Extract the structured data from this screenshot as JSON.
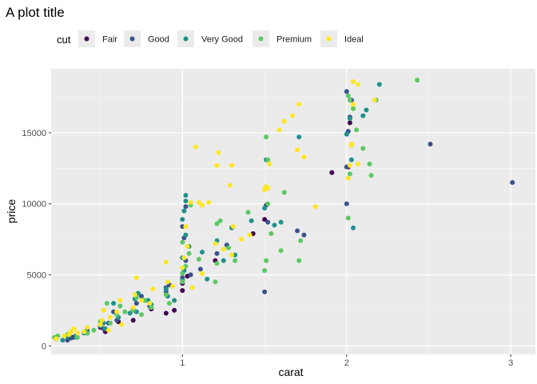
{
  "chart_data": {
    "type": "scatter",
    "title": "A plot title",
    "xlabel": "carat",
    "ylabel": "price",
    "xlim": [
      0.2,
      3.15
    ],
    "ylim": [
      -600,
      19500
    ],
    "x_ticks": [
      1,
      2,
      3
    ],
    "x_minor_ticks": [
      0.5,
      1.5,
      2.5
    ],
    "y_ticks": [
      0,
      5000,
      10000,
      15000
    ],
    "y_minor_ticks": [
      2500,
      7500,
      12500,
      17500
    ],
    "grid": true,
    "legend": {
      "title": "cut",
      "placement": "top",
      "entries": [
        {
          "name": "Fair",
          "color": "#440154"
        },
        {
          "name": "Good",
          "color": "#3B528B"
        },
        {
          "name": "Very Good",
          "color": "#21908C"
        },
        {
          "name": "Premium",
          "color": "#5DC863"
        },
        {
          "name": "Ideal",
          "color": "#FDE725"
        }
      ]
    },
    "series": [
      {
        "name": "Fair",
        "color": "#440154",
        "points": [
          [
            0.7,
            1800
          ],
          [
            0.9,
            2300
          ],
          [
            1.0,
            3900
          ],
          [
            1.0,
            4400
          ],
          [
            1.03,
            4900
          ],
          [
            1.43,
            7900
          ],
          [
            1.5,
            8900
          ],
          [
            1.91,
            12200
          ],
          [
            2.01,
            12600
          ],
          [
            2.02,
            15700
          ],
          [
            0.5,
            1300
          ],
          [
            0.53,
            1000
          ],
          [
            0.61,
            1700
          ],
          [
            0.33,
            600
          ],
          [
            0.42,
            900
          ],
          [
            0.95,
            2500
          ],
          [
            1.2,
            6000
          ],
          [
            0.81,
            2600
          ]
        ]
      },
      {
        "name": "Good",
        "color": "#3B528B",
        "points": [
          [
            0.3,
            400
          ],
          [
            0.32,
            550
          ],
          [
            0.35,
            700
          ],
          [
            0.42,
            900
          ],
          [
            0.52,
            1200
          ],
          [
            0.58,
            2400
          ],
          [
            0.6,
            1800
          ],
          [
            0.7,
            2500
          ],
          [
            0.72,
            3000
          ],
          [
            0.75,
            3500
          ],
          [
            0.8,
            2800
          ],
          [
            0.9,
            3800
          ],
          [
            0.92,
            4300
          ],
          [
            1.0,
            4800
          ],
          [
            1.01,
            5500
          ],
          [
            1.02,
            6000
          ],
          [
            1.01,
            7600
          ],
          [
            1.0,
            8400
          ],
          [
            1.02,
            9800
          ],
          [
            1.21,
            6500
          ],
          [
            1.27,
            7100
          ],
          [
            1.5,
            3800
          ],
          [
            1.52,
            8700
          ],
          [
            1.51,
            9900
          ],
          [
            1.74,
            7800
          ],
          [
            2.0,
            10000
          ],
          [
            2.0,
            12600
          ],
          [
            2.01,
            15100
          ],
          [
            2.02,
            16100
          ],
          [
            2.0,
            17900
          ],
          [
            2.03,
            17300
          ],
          [
            2.51,
            14200
          ],
          [
            3.01,
            11500
          ],
          [
            0.42,
            1100
          ],
          [
            0.5,
            1500
          ],
          [
            0.55,
            1600
          ],
          [
            0.9,
            4100
          ],
          [
            1.05,
            5000
          ],
          [
            1.11,
            5400
          ],
          [
            1.7,
            8100
          ]
        ]
      },
      {
        "name": "Very Good",
        "color": "#21908C",
        "points": [
          [
            0.23,
            500
          ],
          [
            0.27,
            400
          ],
          [
            0.3,
            650
          ],
          [
            0.31,
            800
          ],
          [
            0.35,
            600
          ],
          [
            0.4,
            900
          ],
          [
            0.41,
            1000
          ],
          [
            0.5,
            1400
          ],
          [
            0.52,
            1600
          ],
          [
            0.58,
            3000
          ],
          [
            0.61,
            2000
          ],
          [
            0.7,
            2600
          ],
          [
            0.71,
            3300
          ],
          [
            0.72,
            2400
          ],
          [
            0.73,
            3700
          ],
          [
            0.79,
            3200
          ],
          [
            0.81,
            2900
          ],
          [
            0.9,
            4000
          ],
          [
            0.91,
            3500
          ],
          [
            1.0,
            4600
          ],
          [
            1.01,
            5300
          ],
          [
            1.0,
            6200
          ],
          [
            1.02,
            7800
          ],
          [
            1.0,
            8900
          ],
          [
            1.02,
            10200
          ],
          [
            1.02,
            10600
          ],
          [
            1.01,
            9500
          ],
          [
            1.04,
            7000
          ],
          [
            1.12,
            6600
          ],
          [
            1.21,
            7400
          ],
          [
            1.3,
            8300
          ],
          [
            1.42,
            8800
          ],
          [
            1.5,
            9700
          ],
          [
            1.51,
            13100
          ],
          [
            1.56,
            8500
          ],
          [
            1.71,
            14700
          ],
          [
            2.0,
            14900
          ],
          [
            2.03,
            13100
          ],
          [
            2.02,
            16000
          ],
          [
            2.04,
            8300
          ],
          [
            2.1,
            16200
          ],
          [
            2.12,
            16600
          ],
          [
            2.2,
            18400
          ],
          [
            0.35,
            700
          ],
          [
            0.53,
            1200
          ],
          [
            0.95,
            3200
          ],
          [
            1.15,
            4700
          ],
          [
            1.25,
            6000
          ],
          [
            1.32,
            6400
          ],
          [
            1.6,
            8700
          ],
          [
            0.68,
            2300
          ]
        ]
      },
      {
        "name": "Premium",
        "color": "#5DC863",
        "points": [
          [
            0.22,
            600
          ],
          [
            0.24,
            700
          ],
          [
            0.3,
            800
          ],
          [
            0.32,
            1000
          ],
          [
            0.36,
            600
          ],
          [
            0.42,
            900
          ],
          [
            0.46,
            1100
          ],
          [
            0.5,
            1700
          ],
          [
            0.54,
            3000
          ],
          [
            0.6,
            2200
          ],
          [
            0.62,
            2800
          ],
          [
            0.7,
            2500
          ],
          [
            0.72,
            3400
          ],
          [
            0.77,
            3200
          ],
          [
            0.81,
            2700
          ],
          [
            0.9,
            3600
          ],
          [
            0.92,
            3000
          ],
          [
            1.0,
            4500
          ],
          [
            1.0,
            5100
          ],
          [
            1.02,
            5600
          ],
          [
            1.04,
            6500
          ],
          [
            1.0,
            7300
          ],
          [
            1.05,
            9900
          ],
          [
            1.2,
            4500
          ],
          [
            1.21,
            5800
          ],
          [
            1.21,
            8600
          ],
          [
            1.23,
            8800
          ],
          [
            1.32,
            6000
          ],
          [
            1.4,
            9400
          ],
          [
            1.5,
            5300
          ],
          [
            1.51,
            6000
          ],
          [
            1.52,
            10000
          ],
          [
            1.52,
            13100
          ],
          [
            1.51,
            14700
          ],
          [
            1.6,
            6700
          ],
          [
            1.62,
            10800
          ],
          [
            1.71,
            6000
          ],
          [
            1.72,
            7400
          ],
          [
            2.01,
            9000
          ],
          [
            2.02,
            12100
          ],
          [
            2.02,
            17300
          ],
          [
            2.06,
            15200
          ],
          [
            2.1,
            13900
          ],
          [
            2.14,
            12800
          ],
          [
            2.15,
            12000
          ],
          [
            2.18,
            17300
          ],
          [
            2.43,
            18700
          ],
          [
            2.04,
            16700
          ],
          [
            2.01,
            17600
          ],
          [
            0.56,
            1600
          ],
          [
            0.65,
            2400
          ],
          [
            1.1,
            6100
          ],
          [
            1.28,
            6900
          ],
          [
            1.54,
            7900
          ],
          [
            0.75,
            2200
          ]
        ]
      },
      {
        "name": "Ideal",
        "color": "#FDE725",
        "points": [
          [
            0.23,
            500
          ],
          [
            0.28,
            700
          ],
          [
            0.31,
            800
          ],
          [
            0.32,
            1000
          ],
          [
            0.34,
            1200
          ],
          [
            0.36,
            900
          ],
          [
            0.4,
            1000
          ],
          [
            0.42,
            1300
          ],
          [
            0.5,
            1500
          ],
          [
            0.51,
            1800
          ],
          [
            0.52,
            2500
          ],
          [
            0.56,
            2000
          ],
          [
            0.6,
            2400
          ],
          [
            0.62,
            3200
          ],
          [
            0.7,
            2700
          ],
          [
            0.71,
            3600
          ],
          [
            0.72,
            4800
          ],
          [
            0.75,
            3200
          ],
          [
            0.8,
            3000
          ],
          [
            0.82,
            4000
          ],
          [
            0.9,
            5900
          ],
          [
            0.91,
            4500
          ],
          [
            0.94,
            4200
          ],
          [
            1.0,
            5500
          ],
          [
            1.01,
            6200
          ],
          [
            1.03,
            7000
          ],
          [
            1.02,
            8400
          ],
          [
            1.05,
            10100
          ],
          [
            1.08,
            14000
          ],
          [
            1.1,
            10100
          ],
          [
            1.12,
            9900
          ],
          [
            1.16,
            10100
          ],
          [
            1.2,
            7200
          ],
          [
            1.21,
            12700
          ],
          [
            1.22,
            13600
          ],
          [
            1.29,
            11300
          ],
          [
            1.3,
            12700
          ],
          [
            1.31,
            8400
          ],
          [
            1.36,
            7500
          ],
          [
            1.41,
            7800
          ],
          [
            1.5,
            11000
          ],
          [
            1.51,
            11200
          ],
          [
            1.52,
            11100
          ],
          [
            1.53,
            12800
          ],
          [
            1.59,
            15200
          ],
          [
            1.62,
            15800
          ],
          [
            1.67,
            16200
          ],
          [
            1.7,
            13800
          ],
          [
            1.71,
            17000
          ],
          [
            1.74,
            13300
          ],
          [
            1.81,
            9800
          ],
          [
            2.01,
            11800
          ],
          [
            2.02,
            12700
          ],
          [
            2.03,
            14100
          ],
          [
            2.03,
            14200
          ],
          [
            2.04,
            17000
          ],
          [
            2.04,
            18600
          ],
          [
            2.07,
            12800
          ],
          [
            2.17,
            17300
          ],
          [
            2.07,
            18400
          ],
          [
            1.3,
            6400
          ],
          [
            1.06,
            4100
          ],
          [
            0.55,
            1100
          ],
          [
            1.25,
            6800
          ],
          [
            1.12,
            5100
          ],
          [
            0.63,
            1500
          ]
        ]
      }
    ]
  }
}
